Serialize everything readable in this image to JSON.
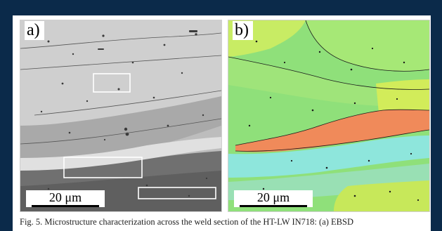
{
  "figure": {
    "panel_a": {
      "label": "a)",
      "scale_bar": "20 μm"
    },
    "panel_b": {
      "label": "b)",
      "scale_bar": "20 μm"
    },
    "caption": "Fig. 5. Microstructure characterization across the weld section of the HT-LW IN718: (a) EBSD"
  },
  "colors": {
    "frame": "#0b2a4a",
    "sem_light": "#c9c9c9",
    "sem_dark": "#6d6d6d",
    "ebsd_green": "#8fe07a",
    "ebsd_yellow": "#d2ec5a",
    "ebsd_cyan": "#8ee6dc",
    "ebsd_orange": "#f08a5a"
  }
}
